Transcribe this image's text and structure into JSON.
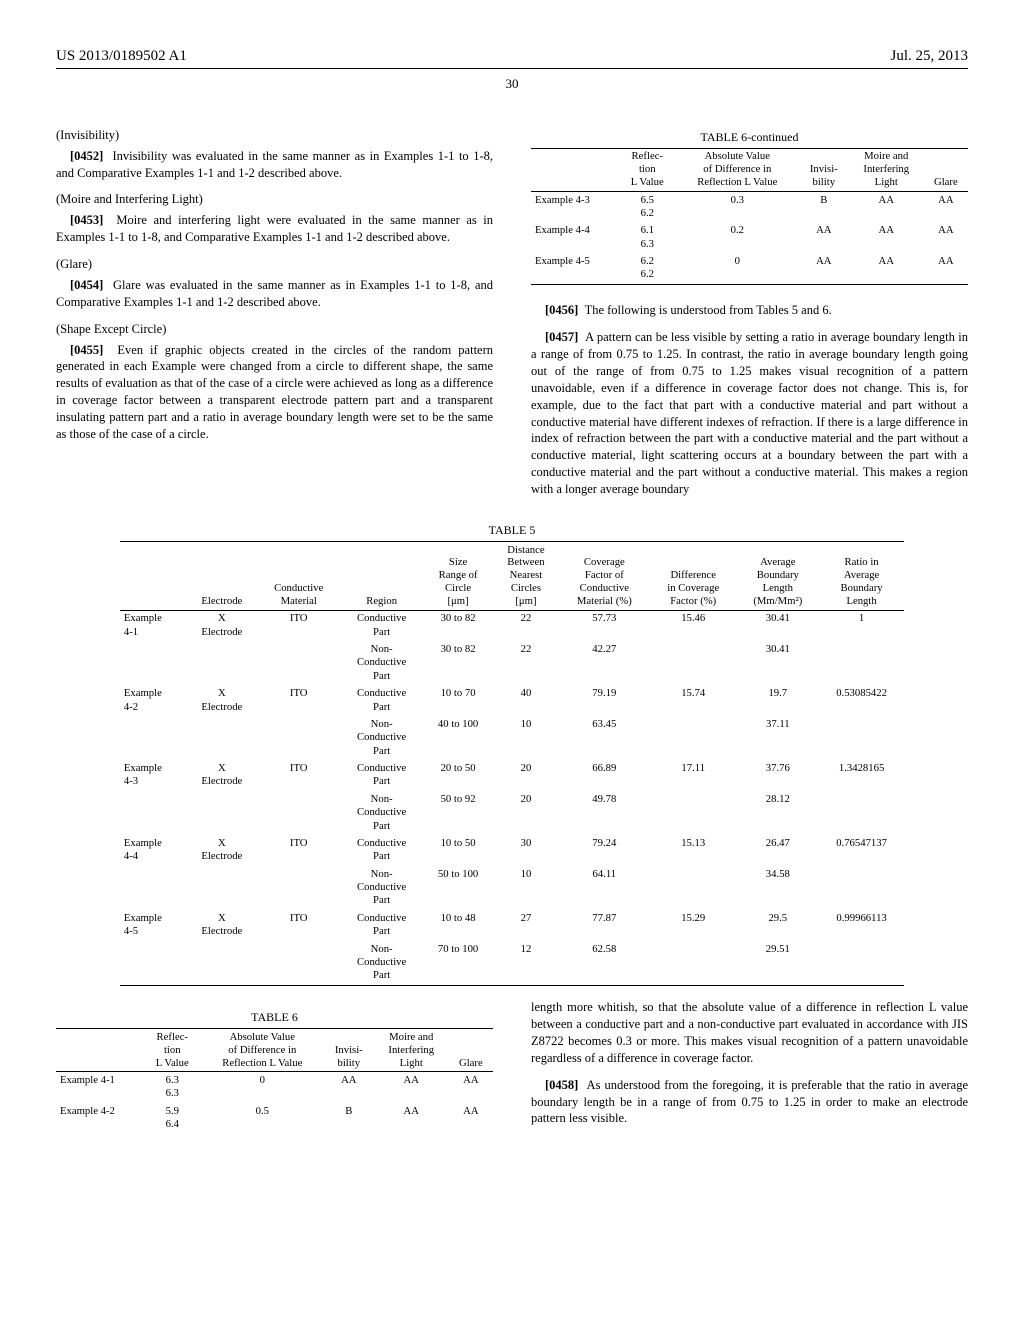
{
  "header": {
    "left": "US 2013/0189502 A1",
    "right": "Jul. 25, 2013"
  },
  "page_number": "30",
  "left_col": {
    "s1_title": "(Invisibility)",
    "p0452_label": "[0452]",
    "p0452": "Invisibility was evaluated in the same manner as in Examples 1-1 to 1-8, and Comparative Examples 1-1 and 1-2 described above.",
    "s2_title": "(Moire and Interfering Light)",
    "p0453_label": "[0453]",
    "p0453": "Moire and interfering light were evaluated in the same manner as in Examples 1-1 to 1-8, and Comparative Examples 1-1 and 1-2 described above.",
    "s3_title": "(Glare)",
    "p0454_label": "[0454]",
    "p0454": "Glare was evaluated in the same manner as in Examples 1-1 to 1-8, and Comparative Examples 1-1 and 1-2 described above.",
    "s4_title": "(Shape Except Circle)",
    "p0455_label": "[0455]",
    "p0455": "Even if graphic objects created in the circles of the random pattern generated in each Example were changed from a circle to different shape, the same results of evaluation as that of the case of a circle were achieved as long as a difference in coverage factor between a transparent electrode pattern part and a transparent insulating pattern part and a ratio in average boundary length were set to be the same as those of the case of a circle."
  },
  "table6c": {
    "title": "TABLE 6-continued",
    "headers": [
      "",
      "Reflec-\ntion\nL Value",
      "Absolute Value\nof Difference in\nReflection L Value",
      "Invisi-\nbility",
      "Moire and\nInterfering\nLight",
      "Glare"
    ],
    "rows": [
      [
        "Example 4-3",
        "6.5\n6.2",
        "0.3",
        "B",
        "AA",
        "AA"
      ],
      [
        "Example 4-4",
        "6.1\n6.3",
        "0.2",
        "AA",
        "AA",
        "AA"
      ],
      [
        "Example 4-5",
        "6.2\n6.2",
        "0",
        "AA",
        "AA",
        "AA"
      ]
    ]
  },
  "right_col": {
    "p0456_label": "[0456]",
    "p0456": "The following is understood from Tables 5 and 6.",
    "p0457_label": "[0457]",
    "p0457": "A pattern can be less visible by setting a ratio in average boundary length in a range of from 0.75 to 1.25. In contrast, the ratio in average boundary length going out of the range of from 0.75 to 1.25 makes visual recognition of a pattern unavoidable, even if a difference in coverage factor does not change. This is, for example, due to the fact that part with a conductive material and part without a conductive material have different indexes of refraction. If there is a large difference in index of refraction between the part with a conductive material and the part without a conductive material, light scattering occurs at a boundary between the part with a conductive material and the part without a conductive material. This makes a region with a longer average boundary"
  },
  "table5": {
    "title": "TABLE 5",
    "headers": [
      "",
      "Electrode",
      "Conductive\nMaterial",
      "Region",
      "Size\nRange of\nCircle\n[μm]",
      "Distance\nBetween\nNearest\nCircles\n[μm]",
      "Coverage\nFactor of\nConductive\nMaterial (%)",
      "Difference\nin Coverage\nFactor (%)",
      "Average\nBoundary\nLength\n(Mm/Mm²)",
      "Ratio in\nAverage\nBoundary\nLength"
    ],
    "rows": [
      [
        "Example\n4-1",
        "X\nElectrode",
        "ITO",
        "Conductive\nPart",
        "30 to 82",
        "22",
        "57.73",
        "15.46",
        "30.41",
        "1"
      ],
      [
        "",
        "",
        "",
        "Non-\nConductive\nPart",
        "30 to 82",
        "22",
        "42.27",
        "",
        "30.41",
        ""
      ],
      [
        "Example\n4-2",
        "X\nElectrode",
        "ITO",
        "Conductive\nPart",
        "10 to 70",
        "40",
        "79.19",
        "15.74",
        "19.7",
        "0.53085422"
      ],
      [
        "",
        "",
        "",
        "Non-\nConductive\nPart",
        "40 to 100",
        "10",
        "63.45",
        "",
        "37.11",
        ""
      ],
      [
        "Example\n4-3",
        "X\nElectrode",
        "ITO",
        "Conductive\nPart",
        "20 to 50",
        "20",
        "66.89",
        "17.11",
        "37.76",
        "1.3428165"
      ],
      [
        "",
        "",
        "",
        "Non-\nConductive\nPart",
        "50 to 92",
        "20",
        "49.78",
        "",
        "28.12",
        ""
      ],
      [
        "Example\n4-4",
        "X\nElectrode",
        "ITO",
        "Conductive\nPart",
        "10 to 50",
        "30",
        "79.24",
        "15.13",
        "26.47",
        "0.76547137"
      ],
      [
        "",
        "",
        "",
        "Non-\nConductive\nPart",
        "50 to 100",
        "10",
        "64.11",
        "",
        "34.58",
        ""
      ],
      [
        "Example\n4-5",
        "X\nElectrode",
        "ITO",
        "Conductive\nPart",
        "10 to 48",
        "27",
        "77.87",
        "15.29",
        "29.5",
        "0.99966113"
      ],
      [
        "",
        "",
        "",
        "Non-\nConductive\nPart",
        "70 to 100",
        "12",
        "62.58",
        "",
        "29.51",
        ""
      ]
    ]
  },
  "table6": {
    "title": "TABLE 6",
    "headers": [
      "",
      "Reflec-\ntion\nL Value",
      "Absolute Value\nof Difference in\nReflection L Value",
      "Invisi-\nbility",
      "Moire and\nInterfering\nLight",
      "Glare"
    ],
    "rows": [
      [
        "Example 4-1",
        "6.3\n6.3",
        "0",
        "AA",
        "AA",
        "AA"
      ],
      [
        "Example 4-2",
        "5.9\n6.4",
        "0.5",
        "B",
        "AA",
        "AA"
      ]
    ]
  },
  "bottom_right": {
    "cont": "length more whitish, so that the absolute value of a difference in reflection L value between a conductive part and a non-conductive part evaluated in accordance with JIS Z8722 becomes 0.3 or more. This makes visual recognition of a pattern unavoidable regardless of a difference in coverage factor.",
    "p0458_label": "[0458]",
    "p0458": "As understood from the foregoing, it is preferable that the ratio in average boundary length be in a range of from 0.75 to 1.25 in order to make an electrode pattern less visible."
  }
}
